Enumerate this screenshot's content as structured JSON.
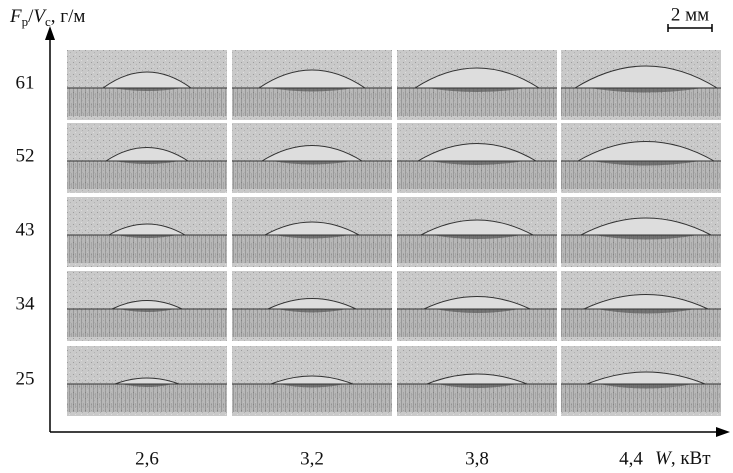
{
  "y_axis": {
    "symbol_f": "F",
    "sub_f": "р",
    "slash": "/",
    "symbol_v": "V",
    "sub_v": "с",
    "unit": ", г/м",
    "ticks": [
      "61",
      "52",
      "43",
      "34",
      "25"
    ]
  },
  "x_axis": {
    "ticks": [
      "2,6",
      "3,2",
      "3,8",
      "4,4"
    ],
    "symbol": "W",
    "unit": ", кВт"
  },
  "scale_bar": "2 мм"
}
